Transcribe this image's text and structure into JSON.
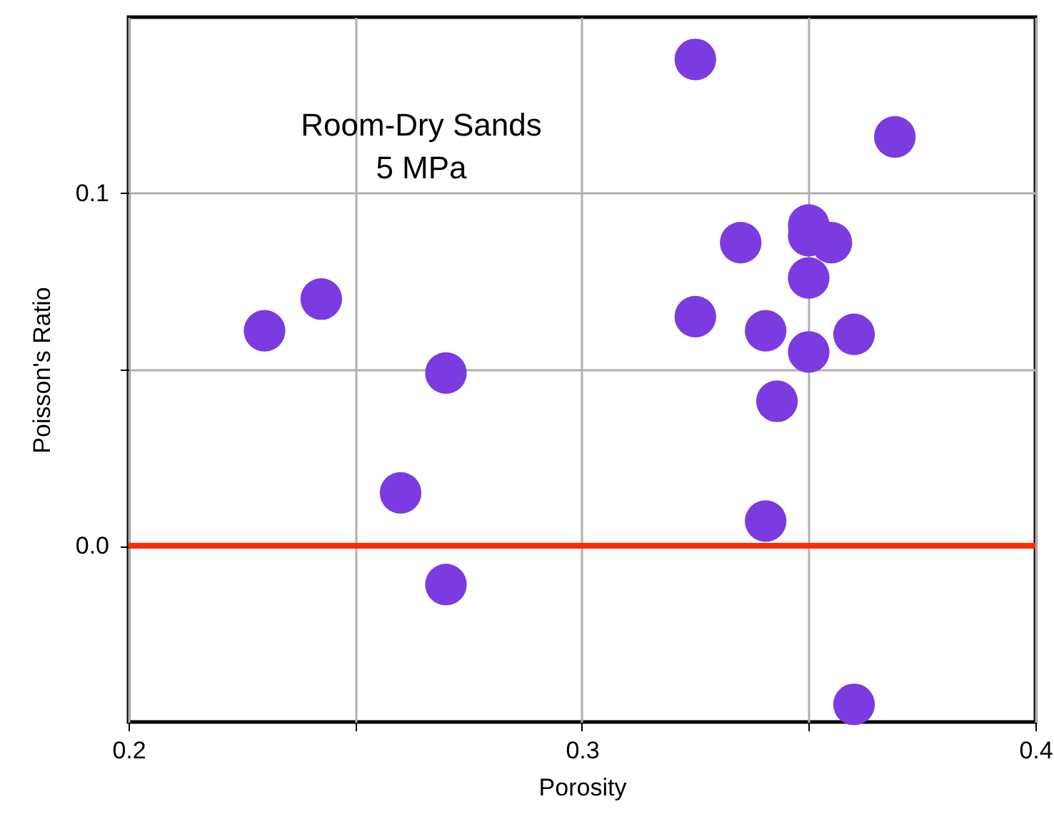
{
  "chart_data": {
    "type": "scatter",
    "xlabel": "Porosity",
    "ylabel": "Poisson's Ratio",
    "annotations": [
      "Room-Dry Sands",
      "5 MPa"
    ],
    "x": [
      0.23,
      0.2425,
      0.27,
      0.26,
      0.27,
      0.325,
      0.369,
      0.335,
      0.35,
      0.35,
      0.355,
      0.35,
      0.325,
      0.3405,
      0.36,
      0.35,
      0.343,
      0.3405,
      0.36
    ],
    "series": [
      {
        "color": "#7b3be0",
        "values": [
          0.061,
          0.07,
          0.049,
          0.015,
          -0.011,
          0.138,
          0.116,
          0.086,
          0.091,
          0.088,
          0.086,
          0.076,
          0.065,
          0.061,
          0.06,
          0.055,
          0.041,
          0.007,
          -0.045
        ]
      }
    ],
    "xlim": [
      0.2,
      0.4
    ],
    "ylim": [
      -0.05,
      0.15
    ],
    "xticks": [
      0.2,
      {
        "value": 0.25,
        "label": null
      },
      0.3,
      {
        "value": 0.35,
        "label": null
      },
      0.4
    ],
    "yticks": [
      {
        "value": 0,
        "label": "0.0"
      },
      {
        "value": 0.05,
        "label": null
      },
      {
        "value": 0.1,
        "label": "0.1"
      }
    ],
    "ref_lines": [
      {
        "axis": "y",
        "value": 0,
        "color": "#ff2a00"
      }
    ],
    "grid": true,
    "marker": "circle"
  }
}
